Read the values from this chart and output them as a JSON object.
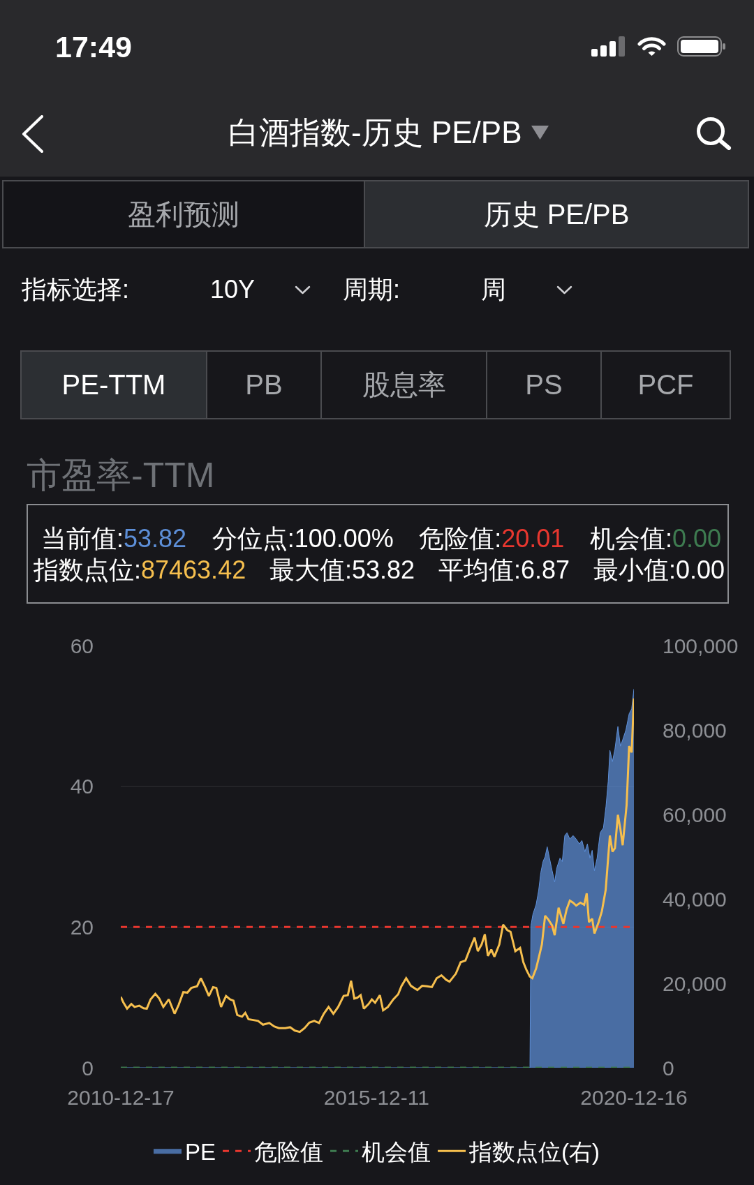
{
  "chart_data": {
    "type": "area",
    "title": "白酒指数-历史 PE/PB",
    "subtitle": "市盈率-TTM",
    "xlim": [
      "2010-12-17",
      "2020-12-16"
    ],
    "xticks": [
      "2010-12-17",
      "2015-12-11",
      "2020-12-16"
    ],
    "ylim": [
      0,
      60
    ],
    "yticks": [
      0,
      20,
      40,
      60
    ],
    "y2lim": [
      0,
      100000
    ],
    "y2ticks": [
      0,
      {
        "value": 20000,
        "label": "20,000"
      },
      {
        "value": 40000,
        "label": "40,000"
      },
      {
        "value": 60000,
        "label": "60,000"
      },
      {
        "value": 80000,
        "label": "80,000"
      },
      {
        "value": 100000,
        "label": "100,000"
      }
    ],
    "grid": "y",
    "legend": "bottom",
    "series": [
      {
        "name": "PE",
        "color": "#5d8fd8",
        "x": [
          "2010-12-17",
          "2018-12-07",
          "2018-12-14",
          "2018-12-28",
          "2019-01-20",
          "2019-02-07",
          "2019-02-22",
          "2019-03-10",
          "2019-03-25",
          "2019-04-09",
          "2019-04-25",
          "2019-05-14",
          "2019-06-01",
          "2019-06-16",
          "2019-07-09",
          "2019-07-25",
          "2019-08-12",
          "2019-08-28",
          "2019-09-17",
          "2019-10-10",
          "2019-11-01",
          "2019-11-24",
          "2019-12-12",
          "2020-01-02",
          "2020-01-20",
          "2020-02-07",
          "2020-02-23",
          "2020-03-10",
          "2020-03-29",
          "2020-04-20",
          "2020-05-13",
          "2020-05-31",
          "2020-06-16",
          "2020-06-28",
          "2020-07-16",
          "2020-08-03",
          "2020-08-24",
          "2020-09-11",
          "2020-09-27",
          "2020-10-20",
          "2020-11-12",
          "2020-11-30",
          "2020-12-16"
        ],
        "values": [
          0,
          0,
          20.2,
          21.8,
          23.2,
          25.2,
          27.7,
          29.3,
          30.0,
          31.4,
          29.8,
          28.0,
          26.4,
          28.4,
          29.8,
          29.3,
          33.0,
          33.4,
          32.5,
          33.0,
          32.5,
          31.8,
          32.3,
          30.7,
          31.8,
          29.8,
          30.9,
          28.0,
          29.8,
          33.4,
          34.1,
          37.1,
          40.7,
          45.1,
          43.5,
          45.3,
          48.5,
          45.7,
          46.6,
          48.0,
          50.3,
          51.0,
          53.82
        ]
      },
      {
        "name": "指数点位(右)",
        "type": "line",
        "axis": "y2",
        "color": "#f6bf4e",
        "x": [
          "2010-12-17",
          "2011-01-04",
          "2011-01-31",
          "2011-03-02",
          "2011-03-25",
          "2011-04-28",
          "2011-05-28",
          "2011-06-20",
          "2011-07-17",
          "2011-08-20",
          "2011-09-17",
          "2011-10-16",
          "2011-11-24",
          "2012-01-04",
          "2012-02-02",
          "2012-03-06",
          "2012-04-04",
          "2012-05-02",
          "2012-06-12",
          "2012-07-09",
          "2012-08-08",
          "2012-09-04",
          "2012-10-04",
          "2012-10-27",
          "2012-11-30",
          "2013-01-04",
          "2013-02-01",
          "2013-02-26",
          "2013-03-25",
          "2013-04-28",
          "2013-05-21",
          "2013-06-13",
          "2013-07-17",
          "2013-08-20",
          "2013-09-24",
          "2013-11-08",
          "2013-12-12",
          "2014-01-15",
          "2014-03-02",
          "2014-04-05",
          "2014-05-09",
          "2014-06-13",
          "2014-07-17",
          "2014-08-20",
          "2014-09-24",
          "2014-10-28",
          "2014-12-01",
          "2015-01-04",
          "2015-02-07",
          "2015-03-13",
          "2015-04-21",
          "2015-05-21",
          "2015-06-13",
          "2015-07-06",
          "2015-07-28",
          "2015-08-20",
          "2015-09-12",
          "2015-10-16",
          "2015-11-08",
          "2015-12-01",
          "2016-01-04",
          "2016-01-27",
          "2016-03-01",
          "2016-04-09",
          "2016-05-13",
          "2016-06-05",
          "2016-07-09",
          "2016-08-12",
          "2016-09-27",
          "2016-10-31",
          "2016-12-05",
          "2017-01-08",
          "2017-02-11",
          "2017-03-17",
          "2017-04-21",
          "2017-05-14",
          "2017-06-28",
          "2017-08-01",
          "2017-09-04",
          "2017-10-09",
          "2017-11-08",
          "2017-12-01",
          "2017-12-28",
          "2018-01-20",
          "2018-02-11",
          "2018-03-07",
          "2018-03-29",
          "2018-05-03",
          "2018-05-30",
          "2018-06-29",
          "2018-07-22",
          "2018-08-25",
          "2018-09-28",
          "2018-10-21",
          "2018-11-13",
          "2018-12-06",
          "2018-12-24",
          "2019-01-20",
          "2019-02-11",
          "2019-03-02",
          "2019-03-25",
          "2019-04-17",
          "2019-05-14",
          "2019-06-01",
          "2019-06-29",
          "2019-08-02",
          "2019-08-25",
          "2019-09-17",
          "2019-10-10",
          "2019-11-01",
          "2019-12-01",
          "2019-12-28",
          "2020-01-15",
          "2020-01-31",
          "2020-02-23",
          "2020-03-10",
          "2020-04-09",
          "2020-05-02",
          "2020-05-29",
          "2020-06-28",
          "2020-07-16",
          "2020-08-03",
          "2020-08-24",
          "2020-09-11",
          "2020-09-27",
          "2020-10-25",
          "2020-11-12",
          "2020-11-30",
          "2020-12-16"
        ],
        "values": [
          16800,
          15500,
          14000,
          15100,
          14400,
          14700,
          14100,
          14000,
          16200,
          17500,
          16400,
          14400,
          16200,
          12800,
          14900,
          17900,
          17800,
          18900,
          19300,
          21200,
          19100,
          17000,
          19100,
          18900,
          14400,
          17000,
          16200,
          15900,
          12500,
          12100,
          13000,
          11500,
          11300,
          11100,
          10200,
          10600,
          9800,
          9400,
          9400,
          9600,
          8800,
          8500,
          9400,
          10700,
          11100,
          10600,
          12800,
          14400,
          12800,
          14400,
          17000,
          17200,
          20600,
          16400,
          16600,
          17200,
          14000,
          15100,
          16200,
          15400,
          17200,
          13600,
          14400,
          16200,
          17400,
          19300,
          21200,
          19400,
          18400,
          19400,
          19300,
          19100,
          21200,
          21900,
          20800,
          20400,
          22300,
          25000,
          25400,
          28400,
          30800,
          27600,
          29200,
          31600,
          26500,
          28000,
          26300,
          29200,
          33900,
          32600,
          32200,
          27600,
          28400,
          25000,
          23100,
          21600,
          21200,
          23500,
          26500,
          29200,
          36000,
          35100,
          33700,
          31400,
          37900,
          34100,
          37500,
          39600,
          39100,
          38400,
          39100,
          38600,
          41300,
          34500,
          35300,
          31800,
          34500,
          37100,
          42100,
          55000,
          51200,
          52000,
          59900,
          56500,
          52700,
          62200,
          76200,
          74700,
          87463.42
        ]
      }
    ],
    "ref_lines": [
      {
        "axis": "y",
        "value": 20.01,
        "label": "危险值",
        "color": "#e8372f",
        "line_style": "dashed"
      },
      {
        "axis": "y",
        "value": 0,
        "label": "机会值",
        "color": "#3e7b50",
        "line_style": "dashed"
      }
    ],
    "annotations": [
      "17:49",
      "盈利预测",
      "历史 PE/PB",
      "指标选择:",
      "10Y",
      "周期:",
      "周",
      "PE-TTM",
      "PB",
      "股息率",
      "PS",
      "PCF",
      "当前值:53.82",
      "分位点:100.00%",
      "危险值:20.01",
      "机会值:0.00",
      "指数点位:87463.42",
      "最大值:53.82",
      "平均值:6.87",
      "最小值:0.00"
    ]
  }
}
